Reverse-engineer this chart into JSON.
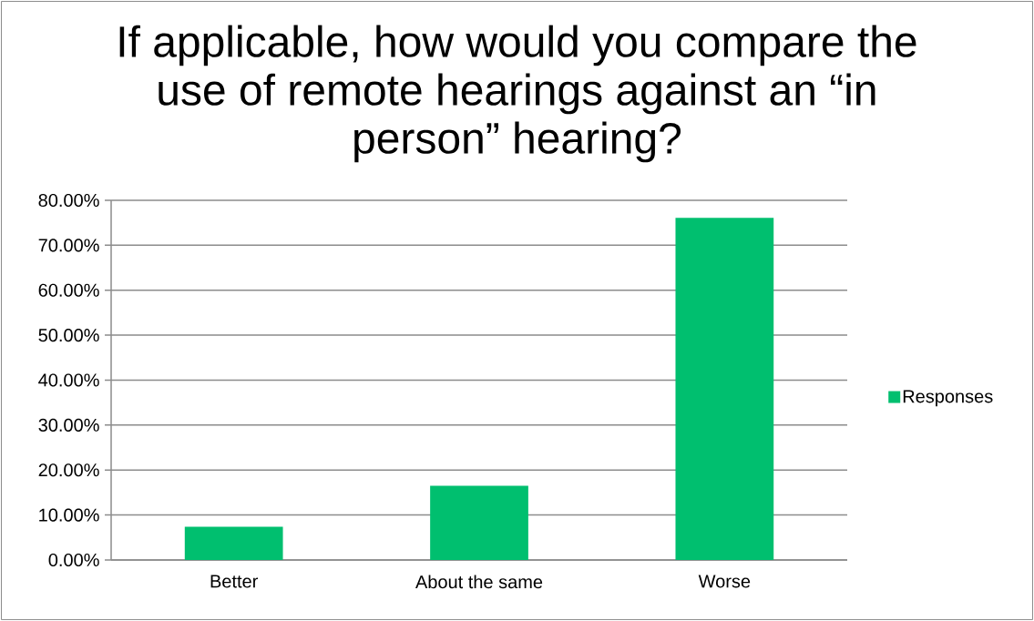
{
  "chart_data": {
    "type": "bar",
    "title": "If applicable, how would you compare the use of remote hearings against an “in person” hearing?",
    "categories": [
      "Better",
      "About the same",
      "Worse"
    ],
    "series": [
      {
        "name": "Responses",
        "color": "#00bf6f",
        "values": [
          7.4,
          16.5,
          76.1
        ]
      }
    ],
    "ylim": [
      0,
      80
    ],
    "yticks": [
      {
        "value": 0,
        "label": "0.00%"
      },
      {
        "value": 10,
        "label": "10.00%"
      },
      {
        "value": 20,
        "label": "20.00%"
      },
      {
        "value": 30,
        "label": "30.00%"
      },
      {
        "value": 40,
        "label": "40.00%"
      },
      {
        "value": 50,
        "label": "50.00%"
      },
      {
        "value": 60,
        "label": "60.00%"
      },
      {
        "value": 70,
        "label": "70.00%"
      },
      {
        "value": 80,
        "label": "80.00%"
      }
    ],
    "grid": "y",
    "legend": "right"
  }
}
